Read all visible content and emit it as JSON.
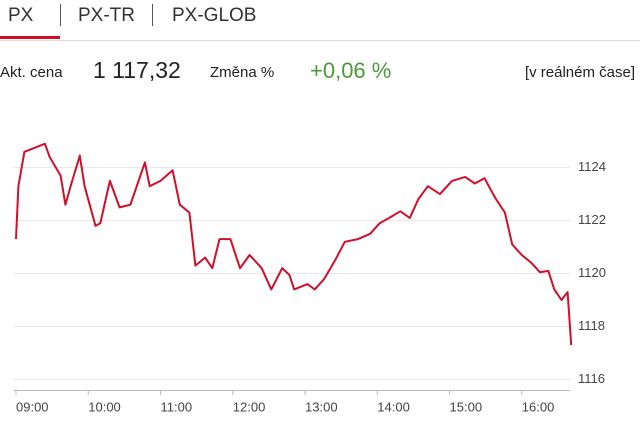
{
  "tabs": [
    "PX",
    "PX-TR",
    "PX-GLOB"
  ],
  "quote": {
    "price_label": "Akt. cena",
    "price": "1 117,32",
    "change_label": "Změna %",
    "change": "+0,06 %",
    "note": "[v reálném čase]"
  },
  "chart_data": {
    "type": "line",
    "color": "#d0102a",
    "grid": true,
    "x": [
      "09:00",
      "09:02",
      "09:07",
      "09:24",
      "09:28",
      "09:37",
      "09:41",
      "09:46",
      "09:53",
      "09:57",
      "10:06",
      "10:10",
      "10:18",
      "10:26",
      "10:35",
      "10:47",
      "10:51",
      "11:00",
      "11:10",
      "11:16",
      "11:24",
      "11:29",
      "11:37",
      "11:43",
      "11:49",
      "11:58",
      "12:06",
      "12:14",
      "12:24",
      "12:32",
      "12:41",
      "12:47",
      "12:51",
      "13:02",
      "13:08",
      "13:16",
      "13:25",
      "13:33",
      "13:44",
      "13:54",
      "14:02",
      "14:10",
      "14:19",
      "14:27",
      "14:34",
      "14:42",
      "14:52",
      "15:02",
      "15:13",
      "15:21",
      "15:29",
      "15:38",
      "15:46",
      "15:52",
      "16:00",
      "16:08",
      "16:15",
      "16:22",
      "16:27",
      "16:33",
      "16:38",
      "16:41"
    ],
    "values": [
      1121.3,
      1123.3,
      1124.6,
      1124.9,
      1124.4,
      1123.7,
      1122.6,
      1123.4,
      1124.45,
      1123.3,
      1121.8,
      1121.9,
      1123.5,
      1122.5,
      1122.6,
      1124.2,
      1123.3,
      1123.5,
      1123.9,
      1122.6,
      1122.3,
      1120.3,
      1120.6,
      1120.2,
      1121.3,
      1121.3,
      1120.2,
      1120.7,
      1120.2,
      1119.4,
      1120.2,
      1119.95,
      1119.4,
      1119.6,
      1119.4,
      1119.8,
      1120.5,
      1121.2,
      1121.3,
      1121.5,
      1121.9,
      1122.1,
      1122.35,
      1122.1,
      1122.8,
      1123.3,
      1123.0,
      1123.5,
      1123.65,
      1123.4,
      1123.6,
      1122.85,
      1122.3,
      1121.1,
      1120.7,
      1120.4,
      1120.05,
      1120.1,
      1119.4,
      1119.0,
      1119.3,
      1117.3
    ],
    "xlim": [
      "09:00",
      "16:45"
    ],
    "xticks": [
      "09:00",
      "10:00",
      "11:00",
      "12:00",
      "13:00",
      "14:00",
      "15:00",
      "16:00"
    ],
    "ylim": [
      1115.6,
      1125.8
    ],
    "yticks": [
      1116,
      1118,
      1120,
      1122,
      1124
    ]
  }
}
